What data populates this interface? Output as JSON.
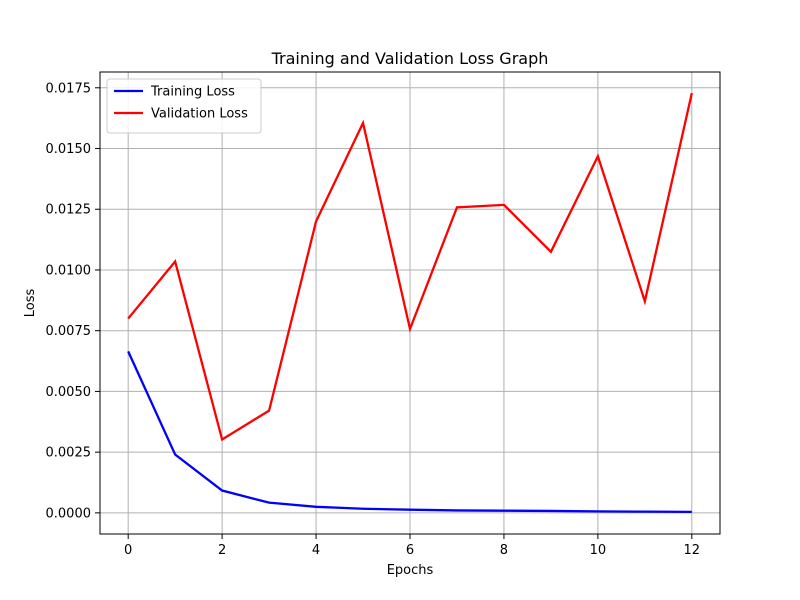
{
  "chart_data": {
    "type": "line",
    "title": "Training and Validation Loss Graph",
    "xlabel": "Epochs",
    "ylabel": "Loss",
    "x": [
      0,
      1,
      2,
      3,
      4,
      5,
      6,
      7,
      8,
      9,
      10,
      11,
      12
    ],
    "xlim": [
      -0.6,
      12.6
    ],
    "ylim": [
      -0.00087,
      0.01815
    ],
    "x_ticks": [
      0,
      2,
      4,
      6,
      8,
      10,
      12
    ],
    "y_ticks": [
      0.0,
      0.0025,
      0.005,
      0.0075,
      0.01,
      0.0125,
      0.015,
      0.0175
    ],
    "x_tick_labels": [
      "0",
      "2",
      "4",
      "6",
      "8",
      "10",
      "12"
    ],
    "y_tick_labels": [
      "0.0000",
      "0.0025",
      "0.0050",
      "0.0075",
      "0.0100",
      "0.0125",
      "0.0150",
      "0.0175"
    ],
    "grid": true,
    "legend_position": "top-left",
    "series": [
      {
        "name": "Training Loss",
        "color": "#0000ff",
        "values": [
          0.00665,
          0.0024,
          0.00092,
          0.00042,
          0.00025,
          0.00017,
          0.00013,
          0.0001,
          9e-05,
          8e-05,
          6e-05,
          5e-05,
          4e-05
        ]
      },
      {
        "name": "Validation Loss",
        "color": "#ff0000",
        "values": [
          0.008,
          0.01035,
          0.00302,
          0.00421,
          0.012,
          0.01605,
          0.00757,
          0.01258,
          0.01268,
          0.01075,
          0.01468,
          0.00871,
          0.01728
        ]
      }
    ]
  }
}
